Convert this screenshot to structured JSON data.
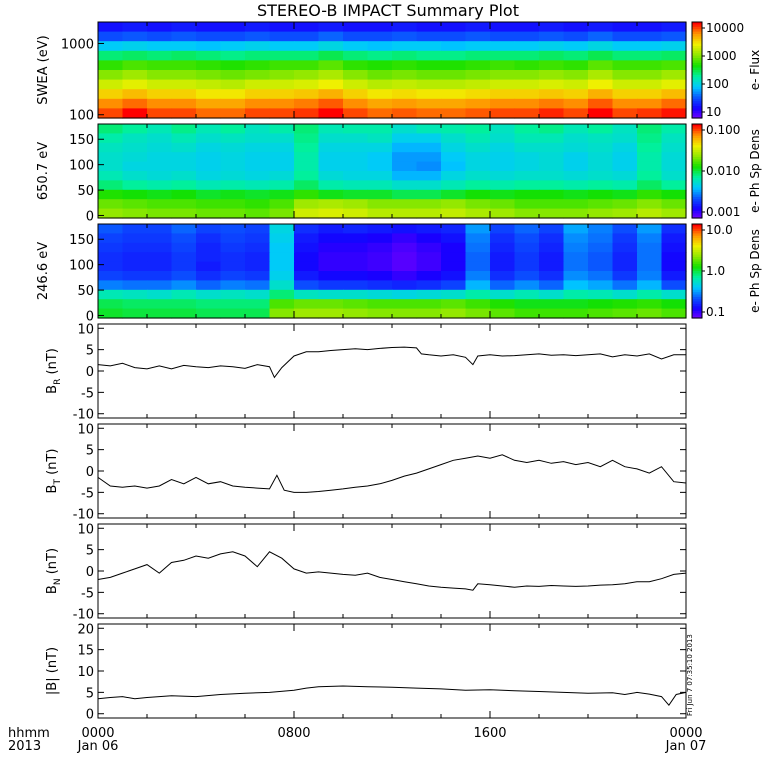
{
  "title": "STEREO-B IMPACT Summary Plot",
  "footer": {
    "hhmm_label": "hhmm",
    "year_label": "2013",
    "x_ticks": [
      "0000",
      "0800",
      "1600",
      "0000"
    ],
    "x_dates": [
      "Jan 06",
      "",
      "",
      "Jan 07"
    ],
    "stamp": "Fri Jun 7 07:35:10 2013"
  },
  "colors": {
    "line": "#000000",
    "background": "#ffffff",
    "colormap": [
      "#7a00ff",
      "#1400ff",
      "#0a55ff",
      "#00c8ff",
      "#00f0a0",
      "#14e000",
      "#90e800",
      "#f0f000",
      "#ff9600",
      "#ff0000"
    ]
  },
  "chart_data": [
    {
      "type": "heatmap",
      "name": "swea",
      "ylabel": "SWEA (eV)",
      "colorbar_label": "e- Flux",
      "colorbar_ticks": [
        "10000",
        "1000",
        "100",
        "10"
      ],
      "y_ticks": [
        "1000",
        "100"
      ],
      "yscale": "log",
      "ylim": [
        90,
        2000
      ],
      "xlim": [
        "0000",
        "0000"
      ],
      "rows_top_to_bottom": [
        [
          1.0,
          1.1,
          1.0,
          1.1,
          1.0,
          1.0,
          1.1,
          1.0,
          1.0,
          1.1,
          1.0,
          1.0,
          1.1,
          1.0,
          1.0,
          1.1,
          1.0,
          1.0,
          1.1,
          1.0,
          1.1,
          1.0,
          1.0,
          1.1
        ],
        [
          1.6,
          1.7,
          1.6,
          1.7,
          1.6,
          1.6,
          1.7,
          1.6,
          1.6,
          1.8,
          1.6,
          1.6,
          1.7,
          1.6,
          1.6,
          1.7,
          1.6,
          1.6,
          1.7,
          1.6,
          1.8,
          1.6,
          1.6,
          1.7
        ],
        [
          2.6,
          2.7,
          2.6,
          2.6,
          2.5,
          2.6,
          2.7,
          2.6,
          2.6,
          2.8,
          2.6,
          2.5,
          2.6,
          2.6,
          2.5,
          2.6,
          2.6,
          2.6,
          2.7,
          2.6,
          2.8,
          2.6,
          2.6,
          2.7
        ],
        [
          3.6,
          3.7,
          3.6,
          3.7,
          3.6,
          3.5,
          3.6,
          3.6,
          3.6,
          3.8,
          3.6,
          3.5,
          3.6,
          3.5,
          3.5,
          3.6,
          3.6,
          3.6,
          3.7,
          3.6,
          3.8,
          3.6,
          3.6,
          3.7
        ],
        [
          4.4,
          4.6,
          4.5,
          4.5,
          4.4,
          4.3,
          4.4,
          4.5,
          4.5,
          4.7,
          4.4,
          4.3,
          4.4,
          4.3,
          4.3,
          4.4,
          4.5,
          4.4,
          4.5,
          4.4,
          4.7,
          4.5,
          4.5,
          4.6
        ],
        [
          5.0,
          5.2,
          5.0,
          5.0,
          4.9,
          4.8,
          4.9,
          5.0,
          5.1,
          5.3,
          5.0,
          4.8,
          4.9,
          4.8,
          4.8,
          4.9,
          5.0,
          5.0,
          5.1,
          5.0,
          5.3,
          5.0,
          5.0,
          5.2
        ],
        [
          5.6,
          5.8,
          5.6,
          5.6,
          5.5,
          5.4,
          5.6,
          5.6,
          5.7,
          5.9,
          5.6,
          5.4,
          5.5,
          5.4,
          5.4,
          5.5,
          5.6,
          5.6,
          5.7,
          5.6,
          5.9,
          5.6,
          5.6,
          5.8
        ],
        [
          6.2,
          6.4,
          6.2,
          6.2,
          6.0,
          6.0,
          6.2,
          6.2,
          6.3,
          6.5,
          6.2,
          6.0,
          6.1,
          6.0,
          6.0,
          6.1,
          6.2,
          6.2,
          6.3,
          6.2,
          6.5,
          6.2,
          6.2,
          6.4
        ],
        [
          6.8,
          7.0,
          6.8,
          6.8,
          6.6,
          6.6,
          6.8,
          6.8,
          6.9,
          7.1,
          6.8,
          6.6,
          6.7,
          6.6,
          6.6,
          6.7,
          6.8,
          6.8,
          6.9,
          6.8,
          7.1,
          6.8,
          6.8,
          7.0
        ],
        [
          7.2,
          7.6,
          7.2,
          7.2,
          7.0,
          7.0,
          7.2,
          7.2,
          7.3,
          7.6,
          7.2,
          7.0,
          7.1,
          7.0,
          7.0,
          7.1,
          7.2,
          7.2,
          7.4,
          7.2,
          7.6,
          7.2,
          7.3,
          7.5
        ]
      ]
    },
    {
      "type": "heatmap",
      "name": "pad_650",
      "ylabel": "650.7 eV",
      "colorbar_label": "e- Ph Sp Dens",
      "colorbar_ticks": [
        "0.100",
        "0.010",
        "0.001"
      ],
      "y_ticks": [
        "150",
        "100",
        "50",
        "0"
      ],
      "ylim": [
        -5,
        180
      ],
      "rows_top_to_bottom": [
        [
          3.6,
          3.4,
          3.2,
          3.5,
          3.2,
          3.4,
          3.1,
          3.3,
          3.6,
          3.2,
          3.3,
          3.3,
          3.0,
          3.2,
          3.3,
          3.4,
          3.1,
          3.4,
          3.5,
          3.2,
          3.4,
          3.1,
          3.6,
          3.3
        ],
        [
          3.3,
          3.1,
          3.0,
          3.2,
          3.0,
          3.1,
          3.0,
          3.0,
          3.5,
          3.0,
          3.0,
          3.1,
          2.7,
          2.7,
          3.0,
          3.2,
          3.0,
          3.2,
          3.2,
          3.0,
          3.1,
          3.0,
          3.5,
          3.1
        ],
        [
          3.1,
          3.0,
          2.9,
          3.0,
          2.8,
          2.9,
          2.8,
          2.8,
          3.4,
          2.8,
          2.8,
          2.8,
          2.4,
          2.4,
          2.8,
          3.0,
          2.8,
          3.0,
          3.0,
          2.9,
          3.0,
          2.8,
          3.4,
          3.0
        ],
        [
          3.0,
          2.9,
          2.8,
          2.8,
          2.7,
          2.8,
          2.7,
          2.7,
          3.3,
          2.7,
          2.7,
          2.6,
          2.2,
          2.2,
          2.6,
          2.8,
          2.7,
          2.8,
          2.9,
          2.7,
          2.9,
          2.7,
          3.3,
          2.9
        ],
        [
          3.0,
          2.8,
          2.8,
          2.8,
          2.7,
          2.8,
          2.7,
          2.7,
          3.3,
          2.7,
          2.7,
          2.6,
          2.2,
          2.1,
          2.5,
          2.8,
          2.7,
          2.8,
          2.9,
          2.7,
          2.9,
          2.7,
          3.3,
          2.9
        ],
        [
          3.2,
          3.0,
          2.9,
          3.0,
          2.8,
          2.9,
          2.8,
          2.9,
          3.4,
          2.9,
          2.8,
          2.8,
          2.4,
          2.4,
          2.8,
          3.0,
          2.9,
          3.0,
          3.0,
          2.9,
          3.0,
          2.9,
          3.4,
          3.0
        ],
        [
          3.6,
          3.4,
          3.3,
          3.4,
          3.2,
          3.3,
          3.2,
          3.3,
          3.7,
          3.3,
          3.2,
          3.2,
          3.0,
          3.0,
          3.2,
          3.4,
          3.3,
          3.4,
          3.4,
          3.3,
          3.4,
          3.3,
          3.7,
          3.4
        ],
        [
          4.3,
          4.2,
          4.1,
          4.2,
          4.0,
          4.1,
          4.0,
          4.1,
          4.4,
          4.1,
          4.0,
          4.0,
          3.8,
          3.8,
          4.0,
          4.2,
          4.1,
          4.2,
          4.2,
          4.1,
          4.2,
          4.1,
          4.4,
          4.2
        ],
        [
          4.8,
          4.7,
          4.6,
          4.6,
          4.5,
          4.5,
          4.4,
          4.6,
          5.2,
          5.3,
          5.2,
          5.0,
          5.0,
          5.0,
          5.1,
          4.9,
          4.8,
          4.6,
          4.6,
          4.6,
          4.7,
          4.8,
          5.0,
          4.8
        ],
        [
          5.1,
          5.0,
          4.9,
          4.9,
          4.8,
          4.8,
          4.7,
          4.9,
          5.6,
          5.7,
          5.6,
          5.4,
          5.4,
          5.4,
          5.5,
          5.3,
          5.2,
          5.0,
          5.0,
          5.0,
          5.1,
          5.2,
          5.4,
          5.2
        ]
      ]
    },
    {
      "type": "heatmap",
      "name": "pad_246",
      "ylabel": "246.6 eV",
      "colorbar_label": "e- Ph Sp Dens",
      "colorbar_ticks": [
        "10.0",
        "1.0",
        "0.1"
      ],
      "y_ticks": [
        "150",
        "100",
        "50",
        "0"
      ],
      "ylim": [
        -5,
        180
      ],
      "rows_top_to_bottom": [
        [
          1.7,
          1.5,
          1.5,
          1.8,
          1.5,
          1.6,
          1.5,
          2.8,
          1.3,
          1.1,
          1.2,
          1.1,
          1.0,
          1.1,
          1.2,
          2.2,
          1.5,
          1.8,
          1.5,
          2.3,
          2.0,
          1.6,
          2.2,
          1.3
        ],
        [
          1.5,
          1.4,
          1.4,
          1.6,
          1.3,
          1.5,
          1.4,
          2.7,
          1.1,
          0.9,
          0.9,
          0.8,
          0.6,
          0.8,
          1.0,
          2.0,
          1.3,
          1.6,
          1.3,
          2.1,
          1.9,
          1.4,
          2.0,
          1.1
        ],
        [
          1.4,
          1.3,
          1.3,
          1.5,
          1.2,
          1.4,
          1.3,
          2.6,
          1.0,
          0.7,
          0.7,
          0.6,
          0.4,
          0.6,
          0.8,
          1.9,
          1.2,
          1.5,
          1.2,
          2.0,
          1.8,
          1.3,
          1.9,
          1.0
        ],
        [
          1.3,
          1.2,
          1.2,
          1.4,
          1.2,
          1.3,
          1.2,
          2.6,
          0.9,
          0.6,
          0.6,
          0.5,
          0.3,
          0.5,
          0.8,
          1.8,
          1.1,
          1.4,
          1.1,
          1.9,
          1.7,
          1.2,
          1.9,
          0.9
        ],
        [
          1.3,
          1.2,
          1.2,
          1.4,
          1.1,
          1.3,
          1.2,
          2.6,
          0.9,
          0.6,
          0.6,
          0.5,
          0.3,
          0.5,
          0.8,
          1.8,
          1.1,
          1.4,
          1.1,
          1.9,
          1.7,
          1.2,
          1.9,
          0.9
        ],
        [
          1.5,
          1.4,
          1.4,
          1.6,
          1.3,
          1.5,
          1.4,
          2.7,
          1.1,
          0.9,
          0.9,
          0.8,
          0.6,
          0.8,
          1.0,
          2.0,
          1.3,
          1.6,
          1.3,
          2.1,
          1.9,
          1.4,
          2.0,
          1.1
        ],
        [
          2.0,
          1.9,
          1.9,
          2.1,
          1.8,
          2.0,
          1.9,
          3.0,
          1.6,
          1.4,
          1.4,
          1.3,
          1.2,
          1.3,
          1.5,
          2.4,
          1.8,
          2.1,
          1.8,
          2.5,
          2.3,
          1.9,
          2.4,
          1.6
        ],
        [
          3.2,
          3.1,
          3.0,
          3.2,
          3.0,
          3.1,
          3.0,
          3.6,
          3.1,
          3.0,
          3.0,
          2.9,
          2.8,
          2.9,
          3.0,
          3.3,
          3.0,
          3.2,
          3.0,
          3.3,
          3.2,
          3.0,
          3.3,
          3.0
        ],
        [
          3.8,
          3.7,
          3.7,
          3.7,
          3.6,
          3.6,
          3.6,
          4.6,
          4.8,
          4.8,
          4.7,
          4.6,
          4.6,
          4.6,
          4.7,
          4.5,
          4.3,
          4.1,
          4.1,
          4.1,
          4.2,
          4.3,
          4.4,
          4.2
        ],
        [
          4.0,
          3.9,
          3.9,
          3.9,
          3.8,
          3.8,
          3.8,
          5.0,
          5.2,
          5.2,
          5.1,
          5.0,
          5.0,
          5.0,
          5.1,
          4.9,
          4.7,
          4.5,
          4.5,
          4.5,
          4.6,
          4.7,
          4.8,
          4.6
        ]
      ]
    },
    {
      "type": "line",
      "name": "br",
      "ylabel": "B",
      "ylabel_sub": "R",
      "ylabel_unit": "(nT)",
      "y_ticks": [
        "10",
        "5",
        "0",
        "-5",
        "-10"
      ],
      "ylim": [
        -11,
        11
      ],
      "x": [
        0,
        0.5,
        1,
        1.5,
        2,
        2.5,
        3,
        3.5,
        4,
        4.5,
        5,
        5.5,
        6,
        6.5,
        7,
        7.2,
        7.5,
        8,
        8.5,
        9,
        9.5,
        10,
        10.5,
        11,
        11.5,
        12,
        12.5,
        13,
        13.2,
        13.5,
        14,
        14.5,
        15,
        15.3,
        15.5,
        16,
        16.5,
        17,
        17.5,
        18,
        18.5,
        19,
        19.5,
        20,
        20.5,
        21,
        21.5,
        22,
        22.5,
        23,
        23.5,
        24
      ],
      "values": [
        1.5,
        1.2,
        1.8,
        0.8,
        0.5,
        1.2,
        0.5,
        1.3,
        1.0,
        0.8,
        1.2,
        1.0,
        0.6,
        1.5,
        1.0,
        -1.5,
        0.8,
        3.5,
        4.5,
        4.5,
        4.8,
        5.0,
        5.2,
        5.0,
        5.3,
        5.5,
        5.6,
        5.4,
        4.0,
        3.8,
        3.5,
        3.8,
        3.2,
        1.5,
        3.5,
        3.8,
        3.5,
        3.6,
        3.8,
        4.0,
        3.7,
        3.8,
        3.6,
        3.8,
        4.0,
        3.3,
        3.8,
        3.5,
        4.0,
        2.8,
        3.8,
        3.8
      ]
    },
    {
      "type": "line",
      "name": "bt",
      "ylabel": "B",
      "ylabel_sub": "T",
      "ylabel_unit": "(nT)",
      "y_ticks": [
        "10",
        "5",
        "0",
        "-5",
        "-10"
      ],
      "ylim": [
        -11,
        11
      ],
      "x": [
        0,
        0.5,
        1,
        1.5,
        2,
        2.5,
        3,
        3.5,
        4,
        4.5,
        5,
        5.5,
        6,
        6.5,
        7,
        7.3,
        7.6,
        8,
        8.5,
        9,
        9.5,
        10,
        10.5,
        11,
        11.5,
        12,
        12.5,
        13,
        13.5,
        14,
        14.5,
        15,
        15.5,
        16,
        16.5,
        17,
        17.5,
        18,
        18.5,
        19,
        19.5,
        20,
        20.5,
        21,
        21.5,
        22,
        22.5,
        23,
        23.5,
        24
      ],
      "values": [
        -1.5,
        -3.5,
        -3.8,
        -3.5,
        -4.0,
        -3.5,
        -2.0,
        -3.0,
        -1.5,
        -3.0,
        -2.5,
        -3.5,
        -3.8,
        -4.0,
        -4.2,
        -1.0,
        -4.5,
        -5.0,
        -5.0,
        -4.8,
        -4.5,
        -4.2,
        -3.8,
        -3.5,
        -3.0,
        -2.2,
        -1.2,
        -0.5,
        0.5,
        1.5,
        2.5,
        3.0,
        3.5,
        3.0,
        3.8,
        2.5,
        2.0,
        2.5,
        1.8,
        2.2,
        1.5,
        2.0,
        1.0,
        2.5,
        1.0,
        0.5,
        -0.5,
        1.0,
        -2.5,
        -2.8
      ]
    },
    {
      "type": "line",
      "name": "bn",
      "ylabel": "B",
      "ylabel_sub": "N",
      "ylabel_unit": "(nT)",
      "y_ticks": [
        "10",
        "5",
        "0",
        "-5",
        "-10"
      ],
      "ylim": [
        -11,
        11
      ],
      "x": [
        0,
        0.5,
        1,
        1.5,
        2,
        2.5,
        3,
        3.5,
        4,
        4.5,
        5,
        5.5,
        6,
        6.5,
        7,
        7.5,
        8,
        8.5,
        9,
        9.5,
        10,
        10.5,
        11,
        11.5,
        12,
        12.5,
        13,
        13.5,
        14,
        14.5,
        15,
        15.3,
        15.5,
        16,
        16.5,
        17,
        17.5,
        18,
        18.5,
        19,
        19.5,
        20,
        20.5,
        21,
        21.5,
        22,
        22.5,
        23,
        23.5,
        24
      ],
      "values": [
        -2.0,
        -1.5,
        -0.5,
        0.5,
        1.5,
        -0.5,
        2.0,
        2.5,
        3.5,
        3.0,
        4.0,
        4.5,
        3.5,
        1.0,
        4.5,
        3.0,
        0.5,
        -0.5,
        -0.2,
        -0.5,
        -0.8,
        -1.0,
        -0.5,
        -1.5,
        -2.0,
        -2.5,
        -3.0,
        -3.5,
        -3.8,
        -4.0,
        -4.2,
        -4.5,
        -3.0,
        -3.2,
        -3.5,
        -3.8,
        -3.5,
        -3.6,
        -3.4,
        -3.5,
        -3.6,
        -3.5,
        -3.3,
        -3.2,
        -3.0,
        -2.5,
        -2.5,
        -1.8,
        -0.8,
        -0.5
      ]
    },
    {
      "type": "line",
      "name": "bmag",
      "ylabel": "|B|",
      "ylabel_unit": "(nT)",
      "y_ticks": [
        "20",
        "15",
        "10",
        "5",
        "0"
      ],
      "ylim": [
        -1,
        21
      ],
      "x": [
        0,
        0.5,
        1,
        1.5,
        2,
        3,
        4,
        5,
        6,
        7,
        8,
        8.5,
        9,
        10,
        11,
        12,
        13,
        14,
        15,
        16,
        17,
        18,
        19,
        20,
        21,
        21.5,
        22,
        22.5,
        23,
        23.3,
        23.6,
        24
      ],
      "values": [
        3.5,
        3.8,
        4.0,
        3.5,
        3.8,
        4.2,
        4.0,
        4.5,
        4.8,
        5.0,
        5.5,
        6.0,
        6.3,
        6.5,
        6.3,
        6.2,
        6.0,
        5.8,
        5.5,
        5.6,
        5.4,
        5.2,
        5.0,
        4.8,
        4.9,
        4.5,
        5.0,
        4.6,
        4.0,
        2.0,
        4.5,
        5.0
      ]
    }
  ]
}
